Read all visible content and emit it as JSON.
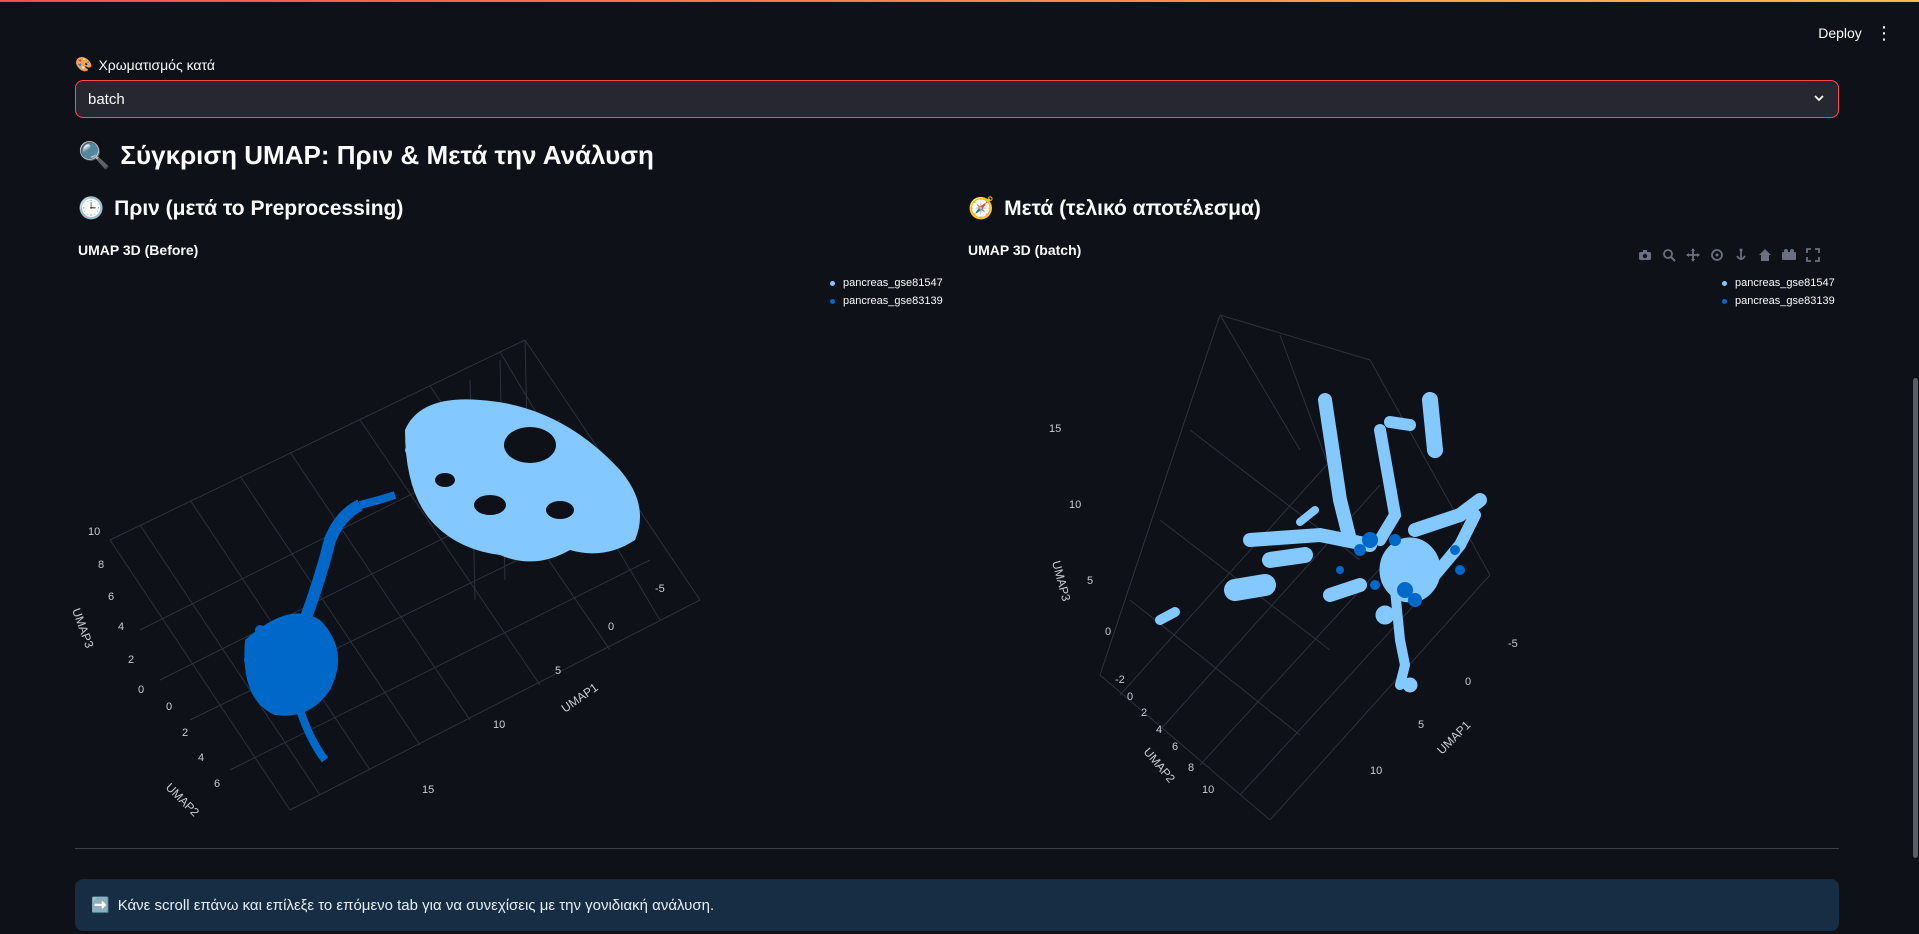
{
  "header": {
    "deploy_label": "Deploy",
    "menu_icon": "⋮"
  },
  "color_select": {
    "label": "Χρωματισμός κατά",
    "label_icon": "🎨",
    "value": "batch",
    "accent": "#ff4b4b"
  },
  "comparison": {
    "title_icon": "🔍",
    "title": "Σύγκριση UMAP: Πριν & Μετά την Ανάλυση",
    "before": {
      "icon": "🕒",
      "heading": "Πριν (μετά το Preprocessing)",
      "plot_title": "UMAP 3D (Before)"
    },
    "after": {
      "icon": "🧭",
      "heading": "Μετά (τελικό αποτέλεσμα)",
      "plot_title": "UMAP 3D (batch)"
    }
  },
  "legend": {
    "items": [
      {
        "label": "pancreas_gse81547",
        "color": "#83c9ff"
      },
      {
        "label": "pancreas_gse83139",
        "color": "#0068c9"
      }
    ]
  },
  "modebar": {
    "icons": [
      "camera-icon",
      "zoom-icon",
      "pan-icon",
      "orbit-icon",
      "turntable-icon",
      "home-icon",
      "camera-views-icon",
      "fullscreen-icon"
    ]
  },
  "chart_data": [
    {
      "type": "scatter",
      "title": "UMAP 3D (Before)",
      "series": [
        {
          "name": "pancreas_gse81547",
          "color": "#83c9ff"
        },
        {
          "name": "pancreas_gse83139",
          "color": "#0068c9"
        }
      ],
      "axes": {
        "x": {
          "label": "UMAP1",
          "ticks": [
            "-5",
            "0",
            "5",
            "10",
            "15"
          ]
        },
        "y": {
          "label": "UMAP2",
          "ticks": [
            "0",
            "2",
            "4",
            "6"
          ]
        },
        "z": {
          "label": "UMAP3",
          "ticks": [
            "0",
            "2",
            "4",
            "6",
            "8",
            "10"
          ]
        }
      }
    },
    {
      "type": "scatter",
      "title": "UMAP 3D (batch)",
      "series": [
        {
          "name": "pancreas_gse81547",
          "color": "#83c9ff"
        },
        {
          "name": "pancreas_gse83139",
          "color": "#0068c9"
        }
      ],
      "axes": {
        "x": {
          "label": "UMAP1",
          "ticks": [
            "-5",
            "0",
            "5",
            "10"
          ]
        },
        "y": {
          "label": "UMAP2",
          "ticks": [
            "-2",
            "0",
            "2",
            "4",
            "6",
            "8",
            "10"
          ]
        },
        "z": {
          "label": "UMAP3",
          "ticks": [
            "0",
            "5",
            "10",
            "15"
          ]
        }
      }
    }
  ],
  "footer": {
    "info_icon": "➡️",
    "info_text": "Κάνε scroll επάνω και επίλεξε το επόμενο tab για να συνεχίσεις με την γονιδιακή ανάλυση."
  }
}
